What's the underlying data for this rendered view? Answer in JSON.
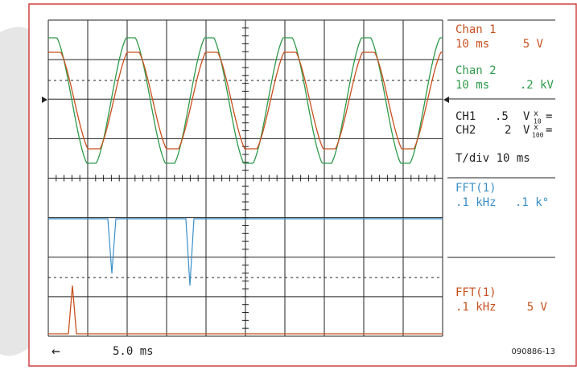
{
  "screen": {
    "chan1": {
      "title": "Chan 1",
      "time": "10 ms",
      "volts": "5 V"
    },
    "chan2": {
      "title": "Chan 2",
      "time": "10 ms",
      "volts": ".2 kV"
    },
    "ch1": {
      "name": "CH1",
      "value": ".5",
      "unit": "V",
      "x": "x",
      "div": "10",
      "eq": "="
    },
    "ch2": {
      "name": "CH2",
      "value": "2",
      "unit": "V",
      "x": "x",
      "div": "100",
      "eq": "="
    },
    "tdiv": "T/div 10 ms",
    "fft_a": {
      "title": "FFT(1)",
      "freq": ".1 kHz",
      "scale": ".1 k°"
    },
    "fft_b": {
      "title": "FFT(1)",
      "freq": ".1 kHz",
      "scale": "5 V"
    },
    "arrow": "←",
    "cursor": "5.0 ms",
    "code": "090886-13"
  }
}
